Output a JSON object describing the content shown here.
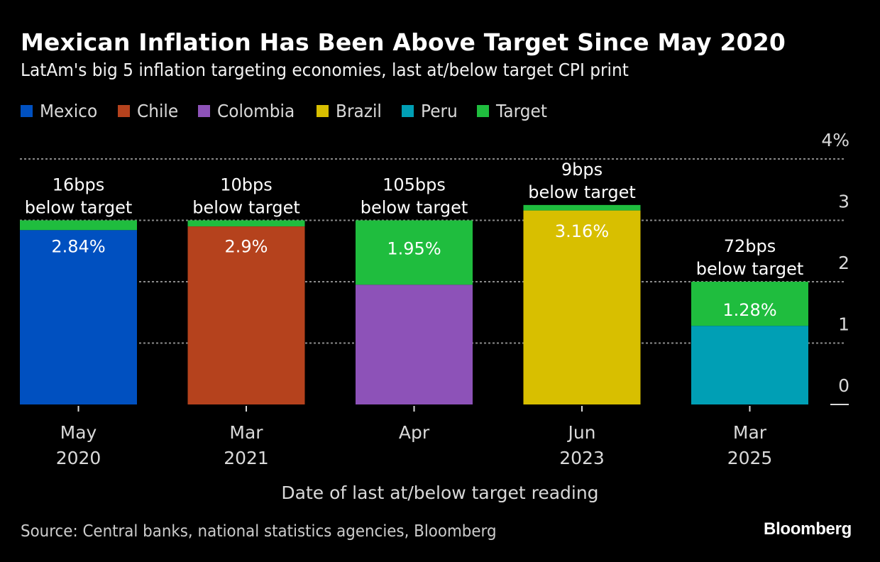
{
  "header": {
    "title": "Mexican Inflation Has Been Above Target Since May 2020",
    "subtitle": "LatAm's big 5 inflation targeting economies, last at/below target CPI print"
  },
  "legend": [
    {
      "label": "Mexico",
      "color": "#0050c0"
    },
    {
      "label": "Chile",
      "color": "#b5421d"
    },
    {
      "label": "Colombia",
      "color": "#8d52b8"
    },
    {
      "label": "Brazil",
      "color": "#d8bf00"
    },
    {
      "label": "Peru",
      "color": "#009fb5"
    },
    {
      "label": "Target",
      "color": "#1fbd3e"
    }
  ],
  "footer": {
    "source": "Source: Central banks, national statistics agencies, Bloomberg",
    "brand": "Bloomberg"
  },
  "chart_data": {
    "type": "bar",
    "title": "Mexican Inflation Has Been Above Target Since May 2020",
    "subtitle": "LatAm's big 5 inflation targeting economies, last at/below target CPI print",
    "xlabel": "Date of last at/below target reading",
    "ylabel": "",
    "ylim": [
      0,
      4
    ],
    "yticks": [
      0,
      1,
      2,
      3,
      4
    ],
    "ytick_labels": [
      "0",
      "1",
      "2",
      "3",
      "4%"
    ],
    "y_axis_position": "right",
    "grid": true,
    "legend_position": "top-left",
    "categories": [
      {
        "line1": "May",
        "line2": "2020"
      },
      {
        "line1": "Mar",
        "line2": "2021"
      },
      {
        "line1": "Apr",
        "line2": ""
      },
      {
        "line1": "Jun",
        "line2": "2023"
      },
      {
        "line1": "Mar",
        "line2": "2025"
      }
    ],
    "bars": [
      {
        "country": "Mexico",
        "color": "#0050c0",
        "value": 2.84,
        "target": 3.0,
        "value_label": "2.84%",
        "gap_label_line1": "16bps",
        "gap_label_line2": "below target"
      },
      {
        "country": "Chile",
        "color": "#b5421d",
        "value": 2.9,
        "target": 3.0,
        "value_label": "2.9%",
        "gap_label_line1": "10bps",
        "gap_label_line2": "below target"
      },
      {
        "country": "Colombia",
        "color": "#8d52b8",
        "value": 1.95,
        "target": 3.0,
        "value_label": "1.95%",
        "gap_label_line1": "105bps",
        "gap_label_line2": "below target"
      },
      {
        "country": "Brazil",
        "color": "#d8bf00",
        "value": 3.16,
        "target": 3.25,
        "value_label": "3.16%",
        "gap_label_line1": "9bps",
        "gap_label_line2": "below target"
      },
      {
        "country": "Peru",
        "color": "#009fb5",
        "value": 1.28,
        "target": 2.0,
        "value_label": "1.28%",
        "gap_label_line1": "72bps",
        "gap_label_line2": "below target"
      }
    ],
    "target_color": "#1fbd3e"
  }
}
